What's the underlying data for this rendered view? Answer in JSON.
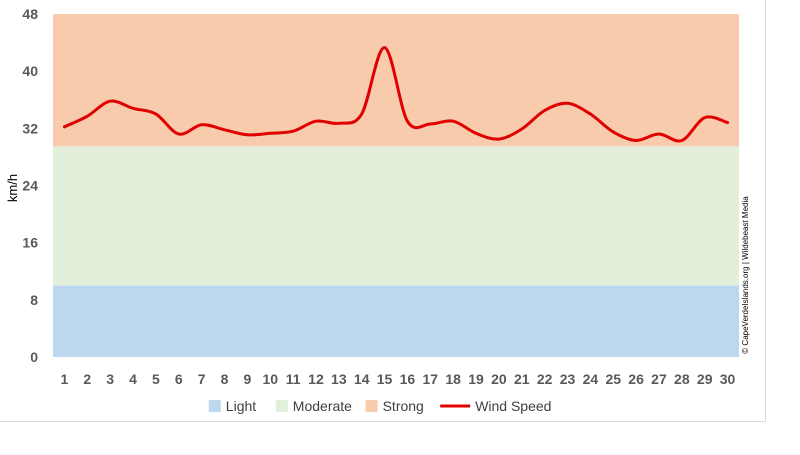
{
  "chart_data": {
    "type": "line",
    "ylabel": "km/h",
    "xlabel": "",
    "ylim": [
      0,
      48
    ],
    "yticks": [
      0,
      8,
      16,
      24,
      32,
      40,
      48
    ],
    "x": [
      1,
      2,
      3,
      4,
      5,
      6,
      7,
      8,
      9,
      10,
      11,
      12,
      13,
      14,
      15,
      16,
      17,
      18,
      19,
      20,
      21,
      22,
      23,
      24,
      25,
      26,
      27,
      28,
      29,
      30
    ],
    "bands": [
      {
        "name": "Light",
        "from": 0,
        "to": 10,
        "color": "#bdd7ee"
      },
      {
        "name": "Moderate",
        "from": 10,
        "to": 29.5,
        "color": "#e2efda"
      },
      {
        "name": "Strong",
        "from": 29.5,
        "to": 48,
        "color": "#f8cbad"
      }
    ],
    "series": [
      {
        "name": "Wind Speed",
        "color": "#e00000",
        "values": [
          32.2,
          33.7,
          35.8,
          34.8,
          34.0,
          31.2,
          32.5,
          31.8,
          31.1,
          31.3,
          31.6,
          33.0,
          32.7,
          34.0,
          43.3,
          33.0,
          32.6,
          33.0,
          31.3,
          30.5,
          31.9,
          34.5,
          35.5,
          34.0,
          31.5,
          30.3,
          31.2,
          30.3,
          33.5,
          32.8
        ]
      }
    ],
    "legend": {
      "position": "bottom",
      "items": [
        {
          "label": "Light",
          "kind": "box",
          "color": "#bdd7ee"
        },
        {
          "label": "Moderate",
          "kind": "box",
          "color": "#e2efda"
        },
        {
          "label": "Strong",
          "kind": "box",
          "color": "#f8cbad"
        },
        {
          "label": "Wind Speed",
          "kind": "line",
          "color": "#e00000"
        }
      ]
    }
  },
  "credit": "© CapeVerdeIslands.org | Wildebeast Media"
}
